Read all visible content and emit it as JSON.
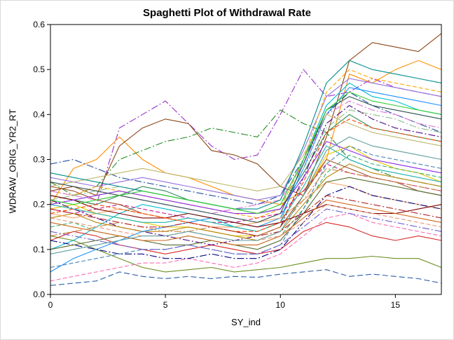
{
  "chart_data": {
    "type": "line",
    "title": "Spaghetti Plot of Withdrawal Rate",
    "xlabel": "SY_ind",
    "ylabel": "WDRAW_ORIG_YR2_RT",
    "xlim": [
      0,
      17
    ],
    "ylim": [
      0.0,
      0.6
    ],
    "xticks": [
      "0",
      "5",
      "10",
      "15"
    ],
    "yticks": [
      "0.0",
      "0.1",
      "0.2",
      "0.3",
      "0.4",
      "0.5",
      "0.6"
    ],
    "grid": false,
    "legend": "none",
    "x": [
      0,
      1,
      2,
      3,
      4,
      5,
      6,
      7,
      8,
      9,
      10,
      11,
      12,
      13,
      14,
      15,
      16,
      17
    ],
    "series": [
      {
        "color": "#2a5caa",
        "dash": "8,4",
        "values": [
          0.02,
          0.025,
          0.03,
          0.05,
          0.04,
          0.035,
          0.04,
          0.035,
          0.04,
          0.038,
          0.045,
          0.05,
          0.055,
          0.04,
          0.045,
          0.04,
          0.035,
          0.025
        ]
      },
      {
        "color": "#6b8e23",
        "dash": "none",
        "values": [
          0.13,
          0.12,
          0.1,
          0.08,
          0.06,
          0.05,
          0.055,
          0.06,
          0.05,
          0.055,
          0.06,
          0.07,
          0.08,
          0.08,
          0.085,
          0.08,
          0.08,
          0.06
        ]
      },
      {
        "color": "#9932cc",
        "dash": "10,3,2,3",
        "values": [
          0.22,
          0.21,
          0.2,
          0.37,
          0.4,
          0.43,
          0.38,
          0.33,
          0.3,
          0.31,
          0.4,
          0.5,
          0.44,
          0.45,
          0.48,
          0.46,
          0.45,
          0.44
        ]
      },
      {
        "color": "#ff8c00",
        "dash": "none",
        "values": [
          0.2,
          0.28,
          0.3,
          0.35,
          0.3,
          0.27,
          0.26,
          0.24,
          0.22,
          0.21,
          0.2,
          0.23,
          0.3,
          0.49,
          0.47,
          0.5,
          0.52,
          0.5
        ]
      },
      {
        "color": "#228b22",
        "dash": "10,3,2,3",
        "values": [
          0.25,
          0.22,
          0.24,
          0.3,
          0.32,
          0.34,
          0.35,
          0.37,
          0.36,
          0.35,
          0.41,
          0.38,
          0.36,
          0.3,
          0.28,
          0.26,
          0.25,
          0.24
        ]
      },
      {
        "color": "#8b4513",
        "dash": "none",
        "values": [
          0.23,
          0.24,
          0.22,
          0.33,
          0.37,
          0.39,
          0.38,
          0.32,
          0.31,
          0.29,
          0.24,
          0.22,
          0.35,
          0.52,
          0.56,
          0.55,
          0.54,
          0.58
        ]
      },
      {
        "color": "#00bcd4",
        "dash": "none",
        "values": [
          0.1,
          0.12,
          0.15,
          0.18,
          0.2,
          0.19,
          0.18,
          0.17,
          0.15,
          0.14,
          0.16,
          0.3,
          0.42,
          0.47,
          0.44,
          0.43,
          0.41,
          0.4
        ]
      },
      {
        "color": "#d62728",
        "dash": "none",
        "values": [
          0.12,
          0.14,
          0.13,
          0.11,
          0.1,
          0.09,
          0.1,
          0.11,
          0.1,
          0.09,
          0.1,
          0.14,
          0.16,
          0.15,
          0.13,
          0.12,
          0.13,
          0.12
        ]
      },
      {
        "color": "#1f4e9a",
        "dash": "10,3,2,3",
        "values": [
          0.29,
          0.3,
          0.28,
          0.26,
          0.25,
          0.24,
          0.23,
          0.22,
          0.21,
          0.2,
          0.22,
          0.3,
          0.4,
          0.45,
          0.42,
          0.4,
          0.38,
          0.36
        ]
      },
      {
        "color": "#e6c800",
        "dash": "none",
        "values": [
          0.19,
          0.2,
          0.18,
          0.17,
          0.16,
          0.15,
          0.15,
          0.14,
          0.13,
          0.13,
          0.15,
          0.22,
          0.31,
          0.33,
          0.3,
          0.28,
          0.27,
          0.25
        ]
      },
      {
        "color": "#c71585",
        "dash": "6,3",
        "values": [
          0.19,
          0.18,
          0.19,
          0.2,
          0.19,
          0.18,
          0.17,
          0.16,
          0.16,
          0.17,
          0.18,
          0.23,
          0.29,
          0.27,
          0.26,
          0.25,
          0.24,
          0.23
        ]
      },
      {
        "color": "#2e8b57",
        "dash": "none",
        "values": [
          0.22,
          0.21,
          0.2,
          0.22,
          0.24,
          0.23,
          0.21,
          0.2,
          0.19,
          0.18,
          0.19,
          0.27,
          0.36,
          0.4,
          0.37,
          0.36,
          0.35,
          0.34
        ]
      },
      {
        "color": "#4b0082",
        "dash": "10,3,2,3",
        "values": [
          0.21,
          0.19,
          0.17,
          0.15,
          0.14,
          0.13,
          0.12,
          0.11,
          0.12,
          0.13,
          0.15,
          0.26,
          0.38,
          0.42,
          0.39,
          0.37,
          0.36,
          0.35
        ]
      },
      {
        "color": "#b8860b",
        "dash": "none",
        "values": [
          0.17,
          0.18,
          0.16,
          0.15,
          0.14,
          0.14,
          0.15,
          0.14,
          0.13,
          0.12,
          0.14,
          0.2,
          0.26,
          0.29,
          0.27,
          0.26,
          0.25,
          0.24
        ]
      },
      {
        "color": "#ff69b4",
        "dash": "6,3",
        "values": [
          0.03,
          0.04,
          0.05,
          0.06,
          0.07,
          0.07,
          0.08,
          0.07,
          0.06,
          0.07,
          0.09,
          0.13,
          0.17,
          0.18,
          0.16,
          0.15,
          0.14,
          0.13
        ]
      },
      {
        "color": "#1e90ff",
        "dash": "none",
        "values": [
          0.05,
          0.08,
          0.1,
          0.12,
          0.14,
          0.15,
          0.16,
          0.17,
          0.16,
          0.15,
          0.17,
          0.28,
          0.4,
          0.46,
          0.45,
          0.44,
          0.43,
          0.42
        ]
      },
      {
        "color": "#8fbc8f",
        "dash": "10,3,2,3",
        "values": [
          0.21,
          0.22,
          0.23,
          0.24,
          0.23,
          0.22,
          0.21,
          0.2,
          0.19,
          0.18,
          0.2,
          0.28,
          0.37,
          0.41,
          0.4,
          0.39,
          0.37,
          0.36
        ]
      },
      {
        "color": "#a0522d",
        "dash": "none",
        "values": [
          0.24,
          0.23,
          0.21,
          0.2,
          0.18,
          0.17,
          0.16,
          0.15,
          0.14,
          0.13,
          0.15,
          0.22,
          0.3,
          0.28,
          0.26,
          0.25,
          0.23,
          0.22
        ]
      },
      {
        "color": "#9370db",
        "dash": "none",
        "values": [
          0.26,
          0.25,
          0.24,
          0.25,
          0.26,
          0.25,
          0.24,
          0.23,
          0.22,
          0.21,
          0.22,
          0.32,
          0.44,
          0.48,
          0.47,
          0.46,
          0.45,
          0.44
        ]
      },
      {
        "color": "#3cb371",
        "dash": "6,3",
        "values": [
          0.15,
          0.16,
          0.14,
          0.13,
          0.12,
          0.12,
          0.13,
          0.12,
          0.11,
          0.11,
          0.13,
          0.19,
          0.27,
          0.31,
          0.29,
          0.28,
          0.27,
          0.26
        ]
      },
      {
        "color": "#f4a460",
        "dash": "none",
        "values": [
          0.18,
          0.17,
          0.18,
          0.19,
          0.18,
          0.17,
          0.16,
          0.15,
          0.15,
          0.16,
          0.17,
          0.21,
          0.25,
          0.24,
          0.22,
          0.21,
          0.2,
          0.19
        ]
      },
      {
        "color": "#000080",
        "dash": "10,3,2,3",
        "values": [
          0.12,
          0.11,
          0.1,
          0.09,
          0.09,
          0.08,
          0.08,
          0.09,
          0.08,
          0.08,
          0.1,
          0.16,
          0.22,
          0.24,
          0.22,
          0.21,
          0.2,
          0.19
        ]
      },
      {
        "color": "#ffa500",
        "dash": "6,3",
        "values": [
          0.23,
          0.22,
          0.24,
          0.23,
          0.22,
          0.21,
          0.2,
          0.19,
          0.18,
          0.17,
          0.19,
          0.3,
          0.45,
          0.5,
          0.48,
          0.47,
          0.46,
          0.45
        ]
      },
      {
        "color": "#20b2aa",
        "dash": "none",
        "values": [
          0.2,
          0.19,
          0.18,
          0.17,
          0.16,
          0.16,
          0.17,
          0.16,
          0.15,
          0.14,
          0.16,
          0.24,
          0.33,
          0.3,
          0.28,
          0.27,
          0.26,
          0.25
        ]
      },
      {
        "color": "#800000",
        "dash": "none",
        "values": [
          0.22,
          0.21,
          0.19,
          0.18,
          0.17,
          0.17,
          0.18,
          0.17,
          0.16,
          0.15,
          0.16,
          0.18,
          0.2,
          0.19,
          0.18,
          0.18,
          0.19,
          0.2
        ]
      },
      {
        "color": "#da70d6",
        "dash": "10,3,2,3",
        "values": [
          0.23,
          0.22,
          0.21,
          0.22,
          0.21,
          0.2,
          0.19,
          0.18,
          0.19,
          0.2,
          0.21,
          0.29,
          0.4,
          0.43,
          0.41,
          0.4,
          0.38,
          0.37
        ]
      },
      {
        "color": "#556b2f",
        "dash": "none",
        "values": [
          0.1,
          0.11,
          0.12,
          0.13,
          0.12,
          0.11,
          0.11,
          0.12,
          0.11,
          0.1,
          0.12,
          0.18,
          0.25,
          0.26,
          0.25,
          0.24,
          0.23,
          0.22
        ]
      },
      {
        "color": "#4682b4",
        "dash": "6,3",
        "values": [
          0.06,
          0.07,
          0.08,
          0.09,
          0.1,
          0.1,
          0.11,
          0.1,
          0.09,
          0.09,
          0.11,
          0.19,
          0.29,
          0.33,
          0.31,
          0.3,
          0.29,
          0.28
        ]
      },
      {
        "color": "#d2691e",
        "dash": "none",
        "values": [
          0.16,
          0.15,
          0.14,
          0.13,
          0.12,
          0.12,
          0.13,
          0.12,
          0.11,
          0.11,
          0.13,
          0.17,
          0.21,
          0.2,
          0.19,
          0.18,
          0.17,
          0.16
        ]
      },
      {
        "color": "#6a5acd",
        "dash": "10,3,2,3",
        "values": [
          0.14,
          0.13,
          0.12,
          0.11,
          0.1,
          0.1,
          0.11,
          0.1,
          0.09,
          0.09,
          0.11,
          0.15,
          0.19,
          0.18,
          0.17,
          0.16,
          0.15,
          0.14
        ]
      },
      {
        "color": "#bdb76b",
        "dash": "none",
        "values": [
          0.24,
          0.25,
          0.26,
          0.27,
          0.28,
          0.27,
          0.26,
          0.25,
          0.24,
          0.23,
          0.24,
          0.31,
          0.4,
          0.38,
          0.36,
          0.35,
          0.34,
          0.33
        ]
      },
      {
        "color": "#ff4500",
        "dash": "6,3",
        "values": [
          0.18,
          0.19,
          0.2,
          0.19,
          0.18,
          0.17,
          0.16,
          0.15,
          0.14,
          0.14,
          0.16,
          0.25,
          0.36,
          0.39,
          0.37,
          0.36,
          0.35,
          0.34
        ]
      },
      {
        "color": "#008b8b",
        "dash": "none",
        "values": [
          0.27,
          0.26,
          0.25,
          0.24,
          0.23,
          0.22,
          0.21,
          0.2,
          0.19,
          0.19,
          0.21,
          0.33,
          0.47,
          0.52,
          0.5,
          0.49,
          0.48,
          0.47
        ]
      },
      {
        "color": "#8a2be2",
        "dash": "none",
        "values": [
          0.2,
          0.21,
          0.22,
          0.23,
          0.22,
          0.21,
          0.2,
          0.19,
          0.18,
          0.18,
          0.19,
          0.26,
          0.34,
          0.32,
          0.3,
          0.29,
          0.28,
          0.27
        ]
      },
      {
        "color": "#cd853f",
        "dash": "10,3,2,3",
        "values": [
          0.13,
          0.14,
          0.15,
          0.16,
          0.15,
          0.14,
          0.14,
          0.15,
          0.14,
          0.13,
          0.15,
          0.21,
          0.28,
          0.27,
          0.26,
          0.25,
          0.24,
          0.23
        ]
      },
      {
        "color": "#2f4f4f",
        "dash": "none",
        "values": [
          0.25,
          0.24,
          0.23,
          0.22,
          0.21,
          0.2,
          0.19,
          0.18,
          0.17,
          0.16,
          0.18,
          0.29,
          0.41,
          0.44,
          0.42,
          0.41,
          0.4,
          0.39
        ]
      },
      {
        "color": "#e9967a",
        "dash": "6,3",
        "values": [
          0.17,
          0.16,
          0.15,
          0.14,
          0.13,
          0.13,
          0.14,
          0.13,
          0.12,
          0.12,
          0.13,
          0.16,
          0.2,
          0.19,
          0.18,
          0.17,
          0.16,
          0.15
        ]
      },
      {
        "color": "#32cd32",
        "dash": "none",
        "values": [
          0.21,
          0.2,
          0.21,
          0.22,
          0.23,
          0.22,
          0.21,
          0.2,
          0.19,
          0.18,
          0.2,
          0.3,
          0.41,
          0.45,
          0.43,
          0.42,
          0.41,
          0.4
        ]
      },
      {
        "color": "#b22222",
        "dash": "10,3,2,3",
        "values": [
          0.19,
          0.18,
          0.17,
          0.16,
          0.15,
          0.15,
          0.16,
          0.15,
          0.14,
          0.13,
          0.14,
          0.18,
          0.22,
          0.21,
          0.2,
          0.19,
          0.18,
          0.17
        ]
      },
      {
        "color": "#5f9ea0",
        "dash": "none",
        "values": [
          0.09,
          0.1,
          0.11,
          0.12,
          0.13,
          0.13,
          0.14,
          0.13,
          0.12,
          0.12,
          0.14,
          0.22,
          0.32,
          0.35,
          0.33,
          0.32,
          0.31,
          0.3
        ]
      }
    ]
  }
}
